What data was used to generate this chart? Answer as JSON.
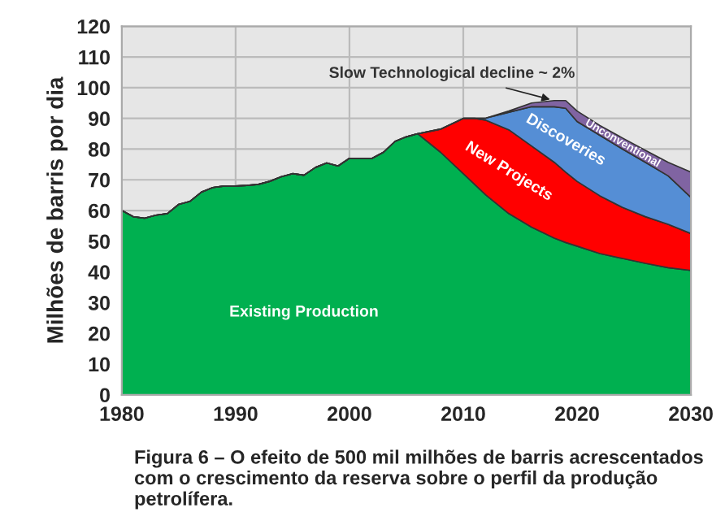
{
  "chart_data": {
    "type": "area",
    "stacked": true,
    "ylabel": "Milhões de barris por dia",
    "x": [
      1980,
      1981,
      1982,
      1983,
      1984,
      1985,
      1986,
      1987,
      1988,
      1989,
      1990,
      1991,
      1992,
      1993,
      1994,
      1995,
      1996,
      1997,
      1998,
      1999,
      2000,
      2001,
      2002,
      2003,
      2004,
      2005,
      2006,
      2008,
      2010,
      2011,
      2012,
      2014,
      2016,
      2018,
      2019,
      2020,
      2022,
      2024,
      2026,
      2028,
      2030
    ],
    "series": [
      {
        "name": "Existing Production",
        "color": "#00b050",
        "values": [
          60,
          58,
          57.5,
          58.5,
          59,
          62,
          63,
          66,
          67.5,
          68,
          68,
          68.2,
          68.5,
          69.5,
          71,
          72,
          71.5,
          74,
          75.5,
          74.5,
          77,
          77,
          77,
          79,
          82.5,
          84,
          85,
          79,
          72,
          68.5,
          65,
          59,
          54.6,
          51,
          49.6,
          48.4,
          46,
          44.4,
          42.8,
          41.4,
          40.5
        ]
      },
      {
        "name": "New Projects",
        "color": "#ff0000",
        "values": [
          0,
          0,
          0,
          0,
          0,
          0,
          0,
          0,
          0,
          0,
          0,
          0,
          0,
          0,
          0,
          0,
          0,
          0,
          0,
          0,
          0,
          0,
          0,
          0,
          0,
          0,
          0,
          7.5,
          18,
          21.5,
          24.4,
          27.3,
          26.4,
          24.7,
          22.9,
          21.1,
          18.8,
          16.6,
          15.2,
          14.1,
          12
        ]
      },
      {
        "name": "Discoveries",
        "color": "#558ed5",
        "values": [
          0,
          0,
          0,
          0,
          0,
          0,
          0,
          0,
          0,
          0,
          0,
          0,
          0,
          0,
          0,
          0,
          0,
          0,
          0,
          0,
          0,
          0,
          0,
          0,
          0,
          0,
          0,
          0,
          0,
          0,
          0.7,
          5.7,
          12.8,
          18.1,
          20.8,
          19.5,
          19.7,
          19,
          17.7,
          15.8,
          11.8
        ]
      },
      {
        "name": "Unconventional",
        "color": "#8064a2",
        "values": [
          0,
          0,
          0,
          0,
          0,
          0,
          0,
          0,
          0,
          0,
          0,
          0,
          0,
          0,
          0,
          0,
          0,
          0,
          0,
          0,
          0,
          0,
          0,
          0,
          0,
          0,
          0,
          0,
          0,
          0,
          0,
          0.4,
          1.2,
          2,
          2.5,
          3.4,
          3.2,
          3.6,
          3.9,
          4.4,
          8.2
        ]
      }
    ],
    "xlim": [
      1980,
      2030
    ],
    "xticks": [
      1980,
      1990,
      2000,
      2010,
      2020,
      2030
    ],
    "ylim": [
      0,
      120
    ],
    "yticks": [
      0,
      10,
      20,
      30,
      40,
      50,
      60,
      70,
      80,
      90,
      100,
      110,
      120
    ],
    "grid": true,
    "legend": false,
    "annotations": [
      "Slow Technological decline ~ 2%",
      "Figura 6 – O efeito de 500 mil milhões de barris acrescentados com o crescimento da reserva sobre o perfil da produção petrolífera."
    ]
  }
}
